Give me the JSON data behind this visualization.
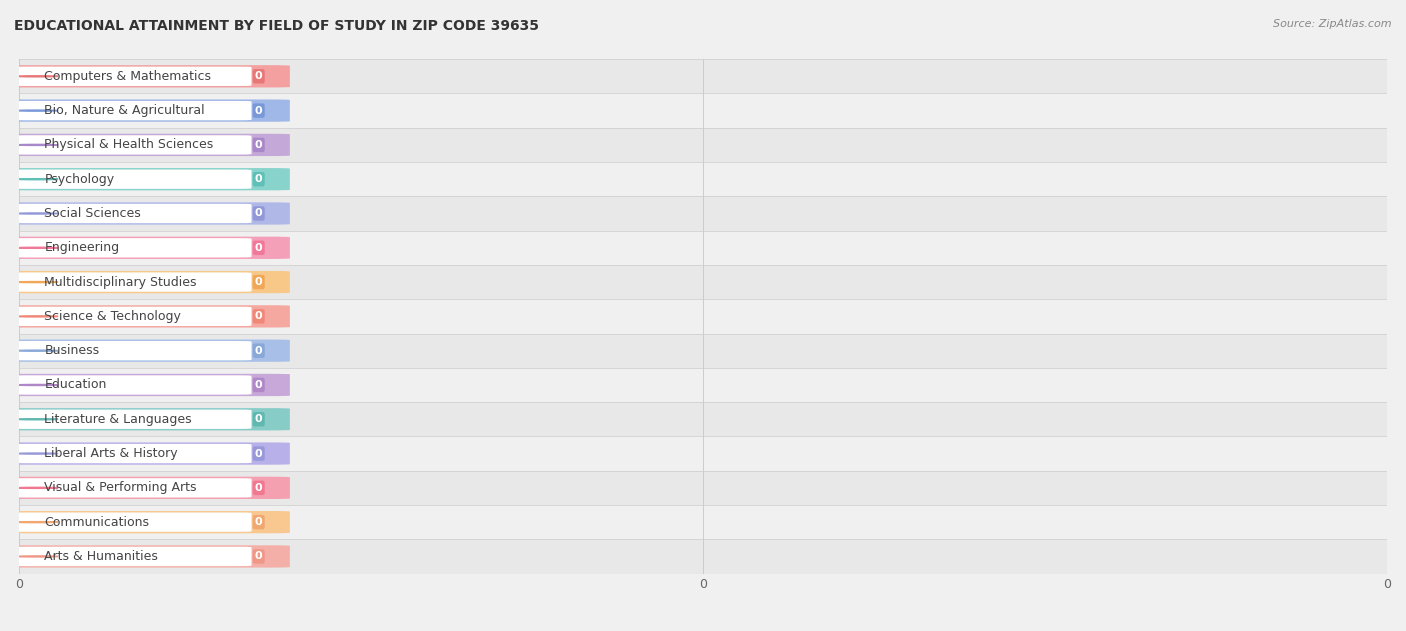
{
  "title": "EDUCATIONAL ATTAINMENT BY FIELD OF STUDY IN ZIP CODE 39635",
  "source": "Source: ZipAtlas.com",
  "categories": [
    "Computers & Mathematics",
    "Bio, Nature & Agricultural",
    "Physical & Health Sciences",
    "Psychology",
    "Social Sciences",
    "Engineering",
    "Multidisciplinary Studies",
    "Science & Technology",
    "Business",
    "Education",
    "Literature & Languages",
    "Liberal Arts & History",
    "Visual & Performing Arts",
    "Communications",
    "Arts & Humanities"
  ],
  "values": [
    0,
    0,
    0,
    0,
    0,
    0,
    0,
    0,
    0,
    0,
    0,
    0,
    0,
    0,
    0
  ],
  "bar_colors": [
    "#F4A0A0",
    "#A0B8E8",
    "#C4A8D8",
    "#88D4CC",
    "#B0B8E8",
    "#F4A0B8",
    "#F8C888",
    "#F4A8A0",
    "#A8C0E8",
    "#C8A8D8",
    "#88CCC8",
    "#B8B0E8",
    "#F4A0B0",
    "#F8C890",
    "#F4B0A8"
  ],
  "dot_colors": [
    "#E87878",
    "#7898D8",
    "#A888C8",
    "#60C0B8",
    "#9098D8",
    "#F07898",
    "#F0A858",
    "#F08878",
    "#88A8D8",
    "#B088C8",
    "#60B8B0",
    "#9898D8",
    "#F07890",
    "#F0A870",
    "#F09888"
  ],
  "background_color": "#f0f0f0",
  "row_colors": [
    "#e8e8e8",
    "#f0f0f0"
  ],
  "title_fontsize": 10,
  "bar_label_fontsize": 9,
  "source_fontsize": 8
}
